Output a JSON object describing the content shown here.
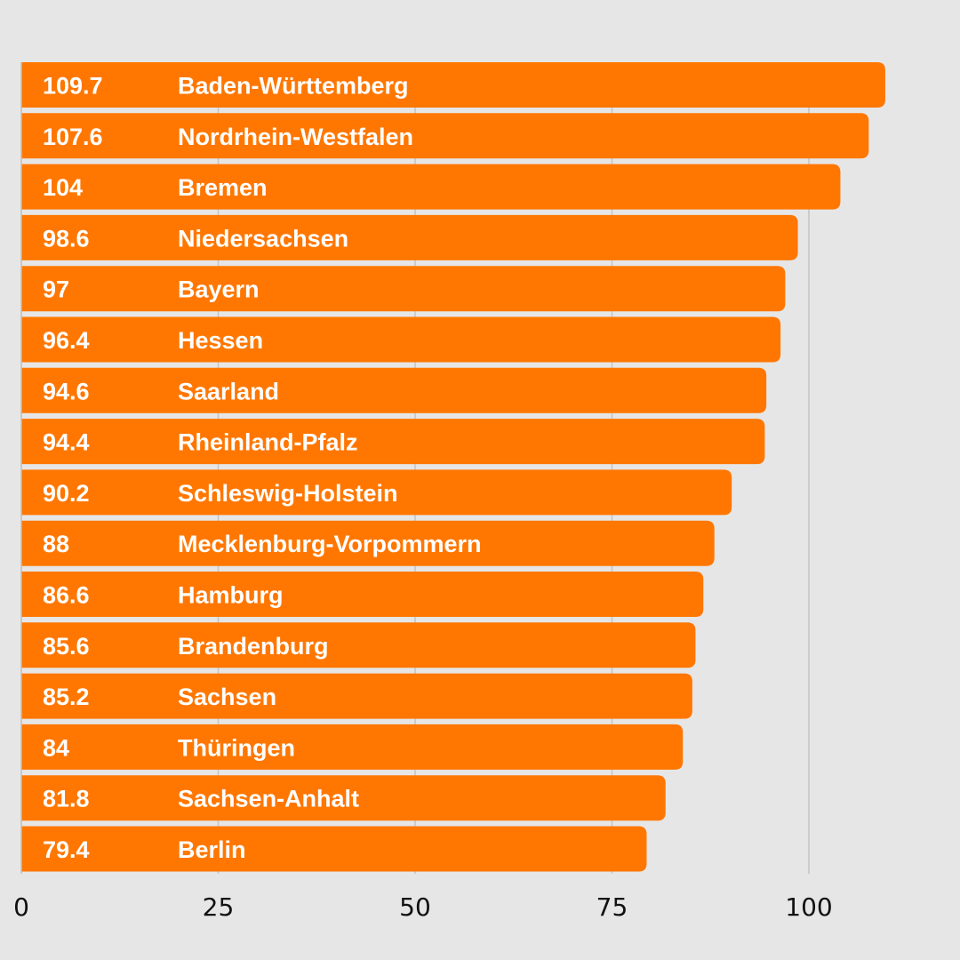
{
  "chart_data": {
    "type": "bar",
    "orientation": "horizontal",
    "title": "",
    "xlabel": "",
    "ylabel": "",
    "xlim": [
      0,
      110
    ],
    "xticks": [
      0,
      25,
      50,
      75,
      100
    ],
    "xtick_labels": [
      "0",
      "25",
      "50",
      "75",
      "100"
    ],
    "grid": true,
    "bar_color": "#ff7700",
    "background_color": "#e6e6e6",
    "categories": [
      "Baden-Württemberg",
      "Nordrhein-Westfalen",
      "Bremen",
      "Niedersachsen",
      "Bayern",
      "Hessen",
      "Saarland",
      "Rheinland-Pfalz",
      "Schleswig-Holstein",
      "Mecklenburg-Vorpommern",
      "Hamburg",
      "Brandenburg",
      "Sachsen",
      "Thüringen",
      "Sachsen-Anhalt",
      "Berlin"
    ],
    "values": [
      109.7,
      107.6,
      104,
      98.6,
      97,
      96.4,
      94.6,
      94.4,
      90.2,
      88,
      86.6,
      85.6,
      85.2,
      84,
      81.8,
      79.4
    ],
    "value_labels": [
      "109.7",
      "107.6",
      "104",
      "98.6",
      "97",
      "96.4",
      "94.6",
      "94.4",
      "90.2",
      "88",
      "86.6",
      "85.6",
      "85.2",
      "84",
      "81.8",
      "79.4"
    ]
  }
}
